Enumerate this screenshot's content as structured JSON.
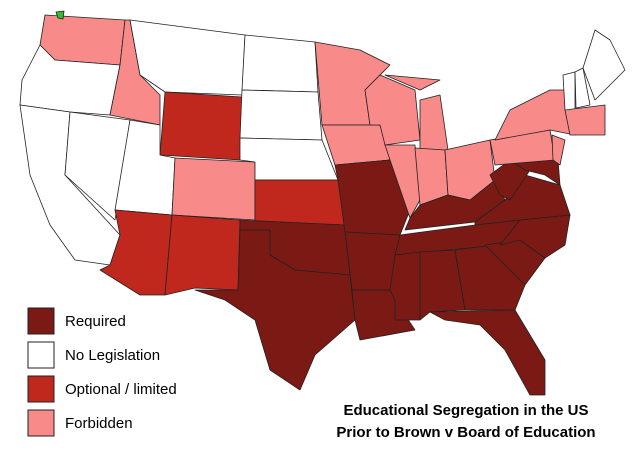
{
  "title": {
    "lines": [
      "Educational Segregation in the US",
      "Prior to Brown v Board of Education"
    ]
  },
  "legend": {
    "items": [
      {
        "label": "Required",
        "color": "#7b1a14"
      },
      {
        "label": "No Legislation",
        "color": "#ffffff"
      },
      {
        "label": "Optional / limited",
        "color": "#c0281e"
      },
      {
        "label": "Forbidden",
        "color": "#f88a8a"
      }
    ]
  }
}
